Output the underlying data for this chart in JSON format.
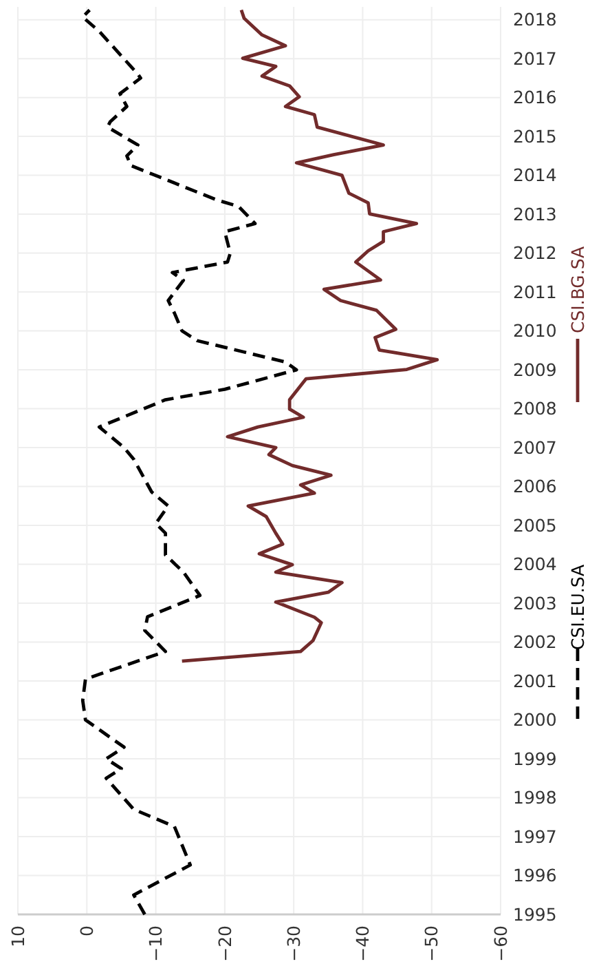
{
  "chart_data": {
    "type": "line",
    "ylim": [
      1995,
      2018.33
    ],
    "yticks": [
      1995,
      1996,
      1997,
      1998,
      1999,
      2000,
      2001,
      2002,
      2003,
      2004,
      2005,
      2006,
      2007,
      2008,
      2009,
      2010,
      2011,
      2012,
      2013,
      2014,
      2015,
      2016,
      2017,
      2018
    ],
    "xlim": [
      10,
      -60
    ],
    "xticks": [
      10,
      0,
      {
        "value": -10,
        "label": "−10"
      },
      {
        "value": -20,
        "label": "−20"
      },
      {
        "value": -30,
        "label": "−30"
      },
      {
        "value": -40,
        "label": "−40"
      },
      {
        "value": -50,
        "label": "−50"
      },
      {
        "value": -60,
        "label": "−60"
      }
    ],
    "grid": true,
    "legend": "right",
    "series": [
      {
        "name": "CSI.EU.SA",
        "color": "#000000",
        "line_style": "dashed",
        "values": [
          1995.0,
          1995.5,
          1996.27,
          1997.26,
          1997.7,
          1998.5,
          1998.75,
          1999.0,
          1999.3,
          2000.0,
          2000.5,
          2001.05,
          2001.76,
          2002.3,
          2002.65,
          2003.2,
          2003.8,
          2004.24,
          2004.8,
          2005.05,
          2005.5,
          2005.86,
          2006.7,
          2007.0,
          2007.53,
          2008.23,
          2008.5,
          2009.0,
          2009.2,
          2009.75,
          2010.0,
          2010.46,
          2010.78,
          2011.3,
          2011.5,
          2011.77,
          2012.0,
          2012.55,
          2012.76,
          2013.2,
          2013.37,
          2014.25,
          2014.5,
          2014.78,
          2015.24,
          2015.38,
          2015.77,
          2016.1,
          2016.5,
          2016.6,
          2017.7,
          2018.07,
          2018.25
        ],
        "x": [
          -8.4,
          -6.8,
          -15,
          -12.7,
          -6.8,
          -2.8,
          -5,
          -2.8,
          -5.4,
          0.2,
          0.6,
          0.2,
          -11.4,
          -8.4,
          -8.8,
          -16.4,
          -14,
          -11.4,
          -11.4,
          -10,
          -11.8,
          -9.4,
          -6.8,
          -5.4,
          -1.8,
          -11.4,
          -20,
          -30.4,
          -28.8,
          -16,
          -13.8,
          -12.7,
          -11.8,
          -14,
          -12.4,
          -20.4,
          -20.8,
          -20,
          -24.4,
          -22,
          -18.8,
          -6.4,
          -5.8,
          -7.4,
          -3,
          -3.4,
          -5.8,
          -4.8,
          -7.8,
          -7.4,
          -1.8,
          0.6,
          -0.4
        ]
      },
      {
        "name": "CSI.BG.SA",
        "color": "#722b2b",
        "line_style": "solid",
        "values": [
          2001.51,
          2001.76,
          2002.04,
          2002.5,
          2002.64,
          2003.03,
          2003.28,
          2003.53,
          2003.8,
          2003.99,
          2004.27,
          2004.52,
          2004.8,
          2005.23,
          2005.5,
          2005.83,
          2006.04,
          2006.29,
          2006.54,
          2006.82,
          2007.0,
          2007.28,
          2007.53,
          2007.78,
          2007.99,
          2008.23,
          2008.77,
          2009.01,
          2009.26,
          2009.51,
          2009.83,
          2010.04,
          2010.53,
          2010.78,
          2011.07,
          2011.31,
          2011.77,
          2012.06,
          2012.3,
          2012.55,
          2012.76,
          2013.01,
          2013.29,
          2013.54,
          2014.0,
          2014.32,
          2014.53,
          2014.78,
          2015.24,
          2015.56,
          2015.77,
          2016.02,
          2016.3,
          2016.55,
          2016.8,
          2017.01,
          2017.33,
          2017.61,
          2018.04,
          2018.25
        ],
        "x": [
          -13.8,
          -31,
          -32.8,
          -34,
          -33,
          -27.4,
          -35,
          -37,
          -27.4,
          -29.8,
          -25,
          -28.4,
          -27.4,
          -26,
          -23.4,
          -33,
          -31,
          -35.4,
          -29.8,
          -26.4,
          -27.4,
          -20.4,
          -24.8,
          -31.4,
          -29.4,
          -29.4,
          -31.8,
          -46.4,
          -50.8,
          -42.4,
          -41.8,
          -44.8,
          -42,
          -36.8,
          -34.4,
          -42.6,
          -39,
          -40.8,
          -43,
          -43,
          -47.8,
          -41,
          -40.8,
          -38,
          -37,
          -30.4,
          -35.8,
          -43,
          -33.4,
          -33,
          -28.8,
          -30.8,
          -29.4,
          -25.4,
          -27.4,
          -22.6,
          -28.8,
          -25.4,
          -22.8,
          -22.4
        ]
      }
    ]
  }
}
